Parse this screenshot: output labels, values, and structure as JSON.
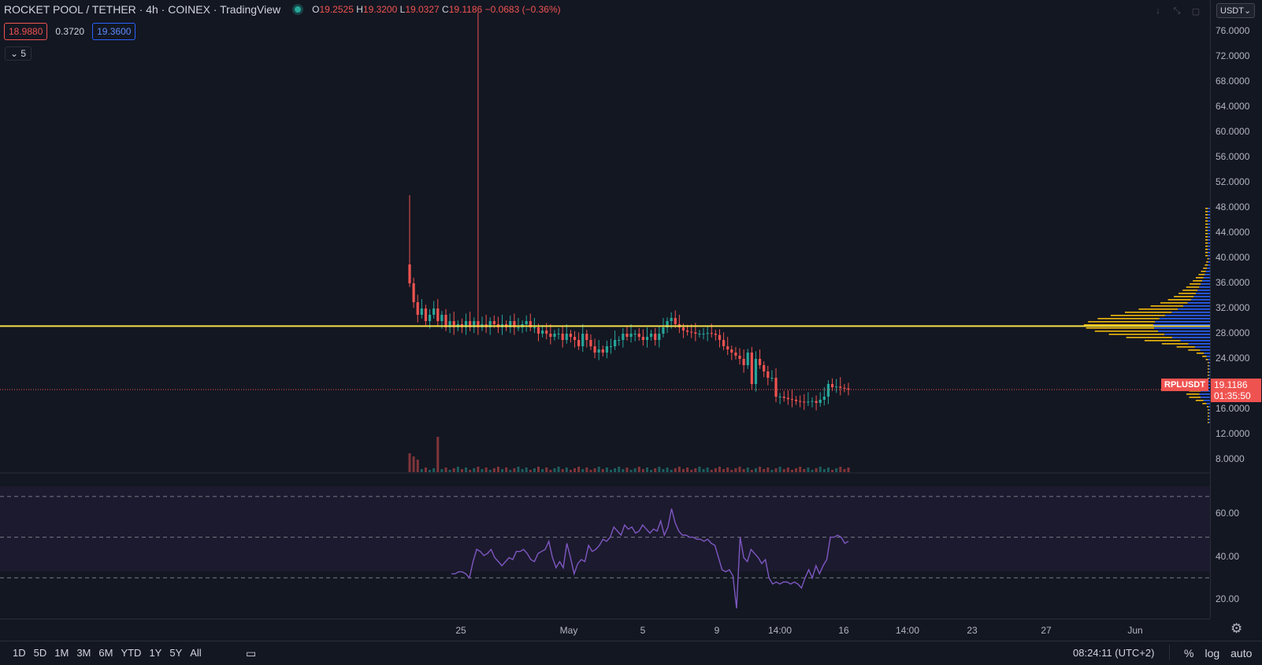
{
  "header": {
    "title": "ROCKET POOL / TETHER · 4h · COINEX · TradingView",
    "ohlc": {
      "o_label": "O",
      "o": "19.2525",
      "h_label": "H",
      "h": "19.3200",
      "l_label": "L",
      "l": "19.0327",
      "c_label": "C",
      "c": "19.1186",
      "change": "−0.0683 (−0.36%)"
    },
    "bid": "18.9880",
    "spread": "0.3720",
    "ask": "19.3600",
    "collapse_label": "5",
    "currency": "USDT"
  },
  "colors": {
    "up": "#26a69a",
    "down": "#ef5350",
    "hline": "#f7e04b",
    "rsi": "#7e57c2",
    "bg": "#131722"
  },
  "price_axis": {
    "ticks": [
      "76.0000",
      "72.0000",
      "68.0000",
      "64.0000",
      "60.0000",
      "56.0000",
      "52.0000",
      "48.0000",
      "44.0000",
      "40.0000",
      "36.0000",
      "32.0000",
      "28.0000",
      "24.0000",
      "20.0000",
      "16.0000",
      "12.0000",
      "8.0000"
    ],
    "symbol_tag": "RPLUSDT",
    "last_price": "19.1186",
    "countdown": "01:35:50"
  },
  "rsi_axis": {
    "ticks": [
      "60.00",
      "40.00",
      "20.00"
    ]
  },
  "time_axis": {
    "ticks": [
      "25",
      "May",
      "5",
      "9",
      "14:00",
      "16",
      "14:00",
      "23",
      "27",
      "Jun"
    ]
  },
  "bottom_bar": {
    "ranges": [
      "1D",
      "5D",
      "1M",
      "3M",
      "6M",
      "YTD",
      "1Y",
      "5Y",
      "All"
    ],
    "clock": "08:24:11 (UTC+2)",
    "options": [
      "%",
      "log",
      "auto"
    ]
  },
  "chart_data": [
    {
      "type": "candlestick",
      "title": "ROCKET POOL / TETHER · 4h · COINEX",
      "y_range": [
        5,
        80
      ],
      "horizontal_line": 29.2,
      "last_price": 19.1186,
      "closes": [
        36,
        33,
        31,
        32,
        30,
        31,
        32,
        30,
        31,
        29,
        30,
        29,
        29.5,
        29,
        30,
        29,
        30,
        29,
        29.5,
        29,
        30,
        29.5,
        29,
        29.5,
        29,
        30,
        29,
        29,
        29.5,
        30,
        29,
        29,
        28,
        28.5,
        28,
        27.5,
        28,
        28,
        27,
        28,
        27.5,
        27,
        26,
        28,
        27,
        26,
        25,
        25.5,
        25,
        26,
        26,
        27,
        27,
        28,
        27.5,
        28,
        28,
        27.5,
        27,
        27.5,
        28,
        27,
        28,
        29,
        30,
        30.5,
        29.5,
        29,
        28.5,
        28.3,
        28.2,
        28,
        28,
        28,
        28.1,
        28,
        27.8,
        27,
        26,
        25.5,
        25,
        24.5,
        24,
        23,
        25,
        20,
        24,
        23,
        22,
        21,
        21,
        18,
        18,
        17.8,
        17.6,
        17.5,
        17.3,
        17.2,
        17.1,
        17.2,
        17.3,
        17,
        17.5,
        18,
        20,
        19.5,
        19.6,
        19.4,
        19.3,
        19.1186
      ],
      "wick_high": [
        50,
        79
      ],
      "volume_spikes": [
        10,
        15
      ]
    },
    {
      "type": "line",
      "title": "RSI",
      "y_range": [
        10,
        75
      ],
      "bands": [
        70,
        50,
        30
      ],
      "values": [
        32,
        32,
        33,
        33,
        32,
        30,
        38,
        44,
        43,
        41,
        42,
        44,
        40,
        38,
        36,
        38,
        40,
        39,
        43,
        43,
        44,
        42,
        39,
        38,
        42,
        43,
        44,
        48,
        40,
        35,
        38,
        35,
        47,
        40,
        32,
        37,
        39,
        38,
        46,
        43,
        44,
        46,
        49,
        48,
        50,
        55,
        53,
        51,
        56,
        54,
        55,
        52,
        53,
        56,
        54,
        52,
        54,
        53,
        58,
        51,
        55,
        64,
        57,
        53,
        51,
        51,
        50,
        50,
        49,
        49,
        48,
        49,
        47,
        46,
        40,
        34,
        33,
        34,
        31,
        15,
        50,
        40,
        38,
        44,
        42,
        40,
        37,
        39,
        30,
        27,
        28,
        27,
        28,
        28,
        27,
        28,
        27,
        25,
        30,
        34,
        30,
        36,
        32,
        36,
        39,
        50,
        50,
        51,
        50,
        47,
        48
      ],
      "ylabel": ""
    }
  ]
}
